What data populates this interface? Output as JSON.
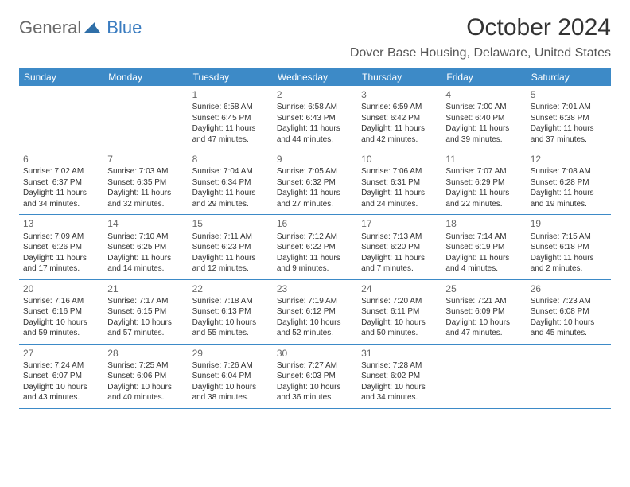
{
  "logo": {
    "text1": "General",
    "text2": "Blue",
    "icon_color": "#2f6fa8"
  },
  "title": "October 2024",
  "location": "Dover Base Housing, Delaware, United States",
  "colors": {
    "header_bg": "#3d8ac7",
    "header_text": "#ffffff",
    "rule": "#3d8ac7"
  },
  "day_names": [
    "Sunday",
    "Monday",
    "Tuesday",
    "Wednesday",
    "Thursday",
    "Friday",
    "Saturday"
  ],
  "weeks": [
    [
      null,
      null,
      {
        "n": "1",
        "sr": "Sunrise: 6:58 AM",
        "ss": "Sunset: 6:45 PM",
        "d1": "Daylight: 11 hours",
        "d2": "and 47 minutes."
      },
      {
        "n": "2",
        "sr": "Sunrise: 6:58 AM",
        "ss": "Sunset: 6:43 PM",
        "d1": "Daylight: 11 hours",
        "d2": "and 44 minutes."
      },
      {
        "n": "3",
        "sr": "Sunrise: 6:59 AM",
        "ss": "Sunset: 6:42 PM",
        "d1": "Daylight: 11 hours",
        "d2": "and 42 minutes."
      },
      {
        "n": "4",
        "sr": "Sunrise: 7:00 AM",
        "ss": "Sunset: 6:40 PM",
        "d1": "Daylight: 11 hours",
        "d2": "and 39 minutes."
      },
      {
        "n": "5",
        "sr": "Sunrise: 7:01 AM",
        "ss": "Sunset: 6:38 PM",
        "d1": "Daylight: 11 hours",
        "d2": "and 37 minutes."
      }
    ],
    [
      {
        "n": "6",
        "sr": "Sunrise: 7:02 AM",
        "ss": "Sunset: 6:37 PM",
        "d1": "Daylight: 11 hours",
        "d2": "and 34 minutes."
      },
      {
        "n": "7",
        "sr": "Sunrise: 7:03 AM",
        "ss": "Sunset: 6:35 PM",
        "d1": "Daylight: 11 hours",
        "d2": "and 32 minutes."
      },
      {
        "n": "8",
        "sr": "Sunrise: 7:04 AM",
        "ss": "Sunset: 6:34 PM",
        "d1": "Daylight: 11 hours",
        "d2": "and 29 minutes."
      },
      {
        "n": "9",
        "sr": "Sunrise: 7:05 AM",
        "ss": "Sunset: 6:32 PM",
        "d1": "Daylight: 11 hours",
        "d2": "and 27 minutes."
      },
      {
        "n": "10",
        "sr": "Sunrise: 7:06 AM",
        "ss": "Sunset: 6:31 PM",
        "d1": "Daylight: 11 hours",
        "d2": "and 24 minutes."
      },
      {
        "n": "11",
        "sr": "Sunrise: 7:07 AM",
        "ss": "Sunset: 6:29 PM",
        "d1": "Daylight: 11 hours",
        "d2": "and 22 minutes."
      },
      {
        "n": "12",
        "sr": "Sunrise: 7:08 AM",
        "ss": "Sunset: 6:28 PM",
        "d1": "Daylight: 11 hours",
        "d2": "and 19 minutes."
      }
    ],
    [
      {
        "n": "13",
        "sr": "Sunrise: 7:09 AM",
        "ss": "Sunset: 6:26 PM",
        "d1": "Daylight: 11 hours",
        "d2": "and 17 minutes."
      },
      {
        "n": "14",
        "sr": "Sunrise: 7:10 AM",
        "ss": "Sunset: 6:25 PM",
        "d1": "Daylight: 11 hours",
        "d2": "and 14 minutes."
      },
      {
        "n": "15",
        "sr": "Sunrise: 7:11 AM",
        "ss": "Sunset: 6:23 PM",
        "d1": "Daylight: 11 hours",
        "d2": "and 12 minutes."
      },
      {
        "n": "16",
        "sr": "Sunrise: 7:12 AM",
        "ss": "Sunset: 6:22 PM",
        "d1": "Daylight: 11 hours",
        "d2": "and 9 minutes."
      },
      {
        "n": "17",
        "sr": "Sunrise: 7:13 AM",
        "ss": "Sunset: 6:20 PM",
        "d1": "Daylight: 11 hours",
        "d2": "and 7 minutes."
      },
      {
        "n": "18",
        "sr": "Sunrise: 7:14 AM",
        "ss": "Sunset: 6:19 PM",
        "d1": "Daylight: 11 hours",
        "d2": "and 4 minutes."
      },
      {
        "n": "19",
        "sr": "Sunrise: 7:15 AM",
        "ss": "Sunset: 6:18 PM",
        "d1": "Daylight: 11 hours",
        "d2": "and 2 minutes."
      }
    ],
    [
      {
        "n": "20",
        "sr": "Sunrise: 7:16 AM",
        "ss": "Sunset: 6:16 PM",
        "d1": "Daylight: 10 hours",
        "d2": "and 59 minutes."
      },
      {
        "n": "21",
        "sr": "Sunrise: 7:17 AM",
        "ss": "Sunset: 6:15 PM",
        "d1": "Daylight: 10 hours",
        "d2": "and 57 minutes."
      },
      {
        "n": "22",
        "sr": "Sunrise: 7:18 AM",
        "ss": "Sunset: 6:13 PM",
        "d1": "Daylight: 10 hours",
        "d2": "and 55 minutes."
      },
      {
        "n": "23",
        "sr": "Sunrise: 7:19 AM",
        "ss": "Sunset: 6:12 PM",
        "d1": "Daylight: 10 hours",
        "d2": "and 52 minutes."
      },
      {
        "n": "24",
        "sr": "Sunrise: 7:20 AM",
        "ss": "Sunset: 6:11 PM",
        "d1": "Daylight: 10 hours",
        "d2": "and 50 minutes."
      },
      {
        "n": "25",
        "sr": "Sunrise: 7:21 AM",
        "ss": "Sunset: 6:09 PM",
        "d1": "Daylight: 10 hours",
        "d2": "and 47 minutes."
      },
      {
        "n": "26",
        "sr": "Sunrise: 7:23 AM",
        "ss": "Sunset: 6:08 PM",
        "d1": "Daylight: 10 hours",
        "d2": "and 45 minutes."
      }
    ],
    [
      {
        "n": "27",
        "sr": "Sunrise: 7:24 AM",
        "ss": "Sunset: 6:07 PM",
        "d1": "Daylight: 10 hours",
        "d2": "and 43 minutes."
      },
      {
        "n": "28",
        "sr": "Sunrise: 7:25 AM",
        "ss": "Sunset: 6:06 PM",
        "d1": "Daylight: 10 hours",
        "d2": "and 40 minutes."
      },
      {
        "n": "29",
        "sr": "Sunrise: 7:26 AM",
        "ss": "Sunset: 6:04 PM",
        "d1": "Daylight: 10 hours",
        "d2": "and 38 minutes."
      },
      {
        "n": "30",
        "sr": "Sunrise: 7:27 AM",
        "ss": "Sunset: 6:03 PM",
        "d1": "Daylight: 10 hours",
        "d2": "and 36 minutes."
      },
      {
        "n": "31",
        "sr": "Sunrise: 7:28 AM",
        "ss": "Sunset: 6:02 PM",
        "d1": "Daylight: 10 hours",
        "d2": "and 34 minutes."
      },
      null,
      null
    ]
  ]
}
